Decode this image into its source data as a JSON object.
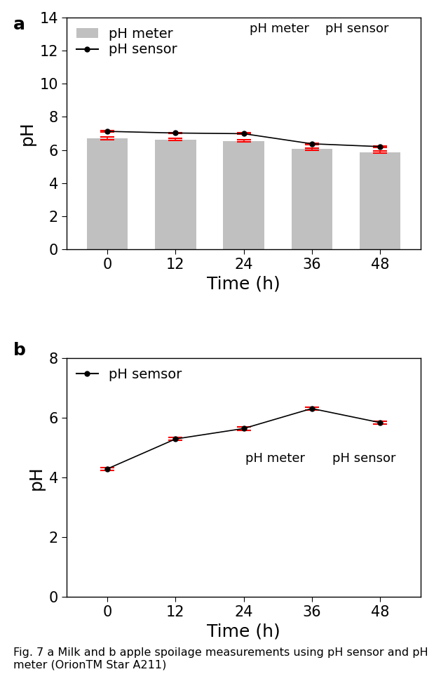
{
  "chart_data": [
    {
      "type": "bar",
      "panel": "a",
      "x_label": "Time (h)",
      "y_label": "pH",
      "categories": [
        "0",
        "12",
        "24",
        "36",
        "48"
      ],
      "series": [
        {
          "name": "pH meter",
          "type": "bar",
          "color": "#c0c0c0",
          "values": [
            6.7,
            6.62,
            6.55,
            6.05,
            5.87
          ],
          "errors": [
            0.07,
            0.06,
            0.05,
            0.07,
            0.06
          ]
        },
        {
          "name": "pH sensor",
          "type": "line",
          "color": "#000000",
          "marker": "o",
          "line_style": "solid",
          "values": [
            7.12,
            7.02,
            6.98,
            6.37,
            6.2
          ],
          "errors": [
            0.04,
            0.04,
            0.04,
            0.05,
            0.04
          ]
        }
      ],
      "ylim": [
        0,
        14
      ],
      "yticks": [
        0,
        2,
        4,
        6,
        8,
        10,
        12,
        14
      ],
      "legend": "upper left",
      "annotations": [
        "pH meter",
        "pH sensor"
      ]
    },
    {
      "type": "line",
      "panel": "b",
      "x_label": "Time (h)",
      "y_label": "pH",
      "categories": [
        "0",
        "12",
        "24",
        "36",
        "48"
      ],
      "series": [
        {
          "name": "pH semsor",
          "type": "line",
          "color": "#000000",
          "marker": "o",
          "line_style": "solid",
          "values": [
            4.3,
            5.3,
            5.65,
            6.32,
            5.85
          ],
          "errors": [
            0.05,
            0.05,
            0.06,
            0.05,
            0.05
          ]
        }
      ],
      "ylim": [
        0,
        8
      ],
      "yticks": [
        0,
        2,
        4,
        6,
        8
      ],
      "legend": "upper left",
      "annotations": [
        "pH meter",
        "pH sensor"
      ]
    }
  ],
  "caption": "Fig. 7 a Milk and b apple spoilage measurements using pH sensor and pH meter (OrionTM Star A211)"
}
